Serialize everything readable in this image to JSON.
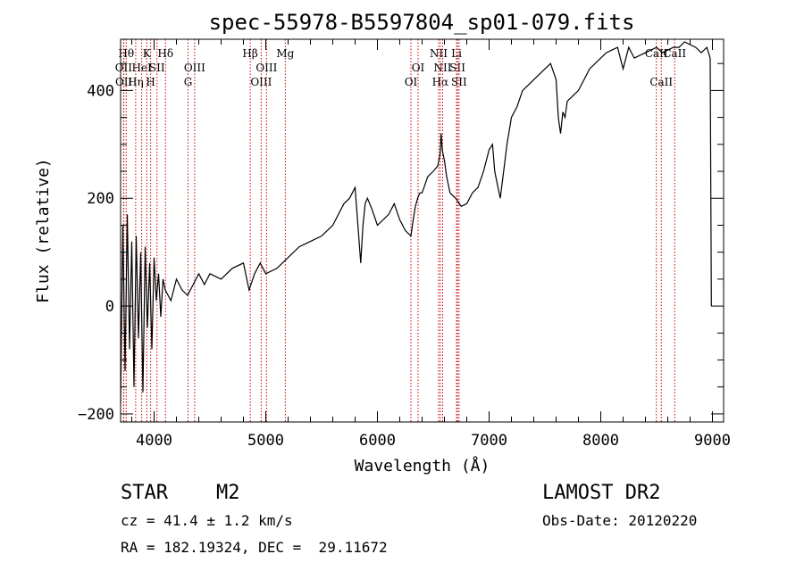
{
  "chart_data": {
    "type": "line",
    "title": "spec-55978-B5597804_sp01-079.fits",
    "xlabel": "Wavelength (Å)",
    "ylabel": "Flux (relative)",
    "xlim": [
      3700,
      9100
    ],
    "ylim": [
      -215,
      495
    ],
    "xticks": [
      4000,
      5000,
      6000,
      7000,
      8000,
      9000
    ],
    "yticks": [
      -200,
      0,
      200,
      400
    ],
    "series": [
      {
        "x": [
          3700,
          3720,
          3740,
          3760,
          3780,
          3800,
          3820,
          3840,
          3860,
          3880,
          3900,
          3920,
          3940,
          3960,
          3980,
          4000,
          4020,
          4040,
          4060,
          4080,
          4100,
          4150,
          4200,
          4250,
          4300,
          4350,
          4400,
          4450,
          4500,
          4600,
          4700,
          4800,
          4850,
          4900,
          4950,
          5000,
          5100,
          5200,
          5300,
          5400,
          5500,
          5600,
          5700,
          5750,
          5800,
          5850,
          5870,
          5890,
          5910,
          5950,
          6000,
          6100,
          6150,
          6200,
          6250,
          6300,
          6320,
          6340,
          6360,
          6380,
          6400,
          6450,
          6500,
          6540,
          6560,
          6570,
          6580,
          6600,
          6620,
          6650,
          6700,
          6750,
          6800,
          6850,
          6900,
          6950,
          7000,
          7030,
          7050,
          7060,
          7080,
          7100,
          7130,
          7160,
          7200,
          7250,
          7300,
          7350,
          7400,
          7500,
          7550,
          7600,
          7620,
          7640,
          7650,
          7660,
          7680,
          7700,
          7750,
          7800,
          7900,
          8000,
          8050,
          8100,
          8150,
          8200,
          8250,
          8300,
          8400,
          8500,
          8550,
          8600,
          8650,
          8700,
          8750,
          8800,
          8850,
          8900,
          8950,
          8980,
          8990
        ],
        "y": [
          -180,
          150,
          -120,
          170,
          -80,
          120,
          -150,
          130,
          -60,
          100,
          -160,
          110,
          -40,
          80,
          -80,
          90,
          10,
          60,
          -20,
          50,
          30,
          10,
          50,
          30,
          20,
          40,
          60,
          40,
          60,
          50,
          70,
          80,
          30,
          60,
          80,
          60,
          70,
          90,
          110,
          120,
          130,
          150,
          190,
          200,
          220,
          80,
          150,
          190,
          200,
          180,
          150,
          170,
          190,
          160,
          140,
          130,
          160,
          185,
          200,
          210,
          210,
          240,
          250,
          260,
          280,
          320,
          290,
          270,
          240,
          210,
          200,
          185,
          190,
          210,
          220,
          250,
          290,
          300,
          250,
          240,
          220,
          200,
          250,
          300,
          350,
          370,
          400,
          410,
          420,
          440,
          450,
          420,
          350,
          320,
          340,
          360,
          350,
          380,
          390,
          400,
          440,
          460,
          470,
          475,
          480,
          440,
          480,
          460,
          470,
          480,
          470,
          475,
          480,
          480,
          490,
          485,
          480,
          470,
          480,
          460,
          0
        ],
        "color": "#000000"
      }
    ],
    "line_markers": [
      {
        "wavelength": 3750,
        "label": "Hθ",
        "row": 1
      },
      {
        "wavelength": 3727,
        "label": "OII",
        "row": 2
      },
      {
        "wavelength": 3729,
        "label": "OII",
        "row": 3
      },
      {
        "wavelength": 3835,
        "label": "Hη",
        "row": 3
      },
      {
        "wavelength": 3889,
        "label": "HeI",
        "row": 2
      },
      {
        "wavelength": 3934,
        "label": "K",
        "row": 1
      },
      {
        "wavelength": 3969,
        "label": "H",
        "row": 3
      },
      {
        "wavelength": 4026,
        "label": "SII",
        "row": 2
      },
      {
        "wavelength": 4102,
        "label": "Hδ",
        "row": 1
      },
      {
        "wavelength": 4304,
        "label": "G",
        "row": 3
      },
      {
        "wavelength": 4363,
        "label": "OIII",
        "row": 2
      },
      {
        "wavelength": 4861,
        "label": "Hβ",
        "row": 1
      },
      {
        "wavelength": 4959,
        "label": "OIII",
        "row": 3
      },
      {
        "wavelength": 5007,
        "label": "OIII",
        "row": 2
      },
      {
        "wavelength": 5175,
        "label": "Mg",
        "row": 1
      },
      {
        "wavelength": 6300,
        "label": "OI",
        "row": 3
      },
      {
        "wavelength": 6364,
        "label": "OI",
        "row": 2
      },
      {
        "wavelength": 6548,
        "label": "NII",
        "row": 1
      },
      {
        "wavelength": 6563,
        "label": "Hα",
        "row": 3
      },
      {
        "wavelength": 6584,
        "label": "NII",
        "row": 2
      },
      {
        "wavelength": 6708,
        "label": "Li",
        "row": 1
      },
      {
        "wavelength": 6717,
        "label": "SII",
        "row": 2
      },
      {
        "wavelength": 6731,
        "label": "SII",
        "row": 3
      },
      {
        "wavelength": 8498,
        "label": "CaII",
        "row": 1
      },
      {
        "wavelength": 8542,
        "label": "CaII",
        "row": 3
      },
      {
        "wavelength": 8662,
        "label": "CaII",
        "row": 1
      }
    ],
    "grid": false,
    "marker_color": "#cc0000"
  },
  "info": {
    "class_label": "STAR",
    "subclass": "M2",
    "survey": "LAMOST DR2",
    "cz": "cz = 41.4 ± 1.2 km/s",
    "obs_date": "Obs-Date: 20120220",
    "coords": "RA = 182.19324, DEC =  29.11672"
  }
}
